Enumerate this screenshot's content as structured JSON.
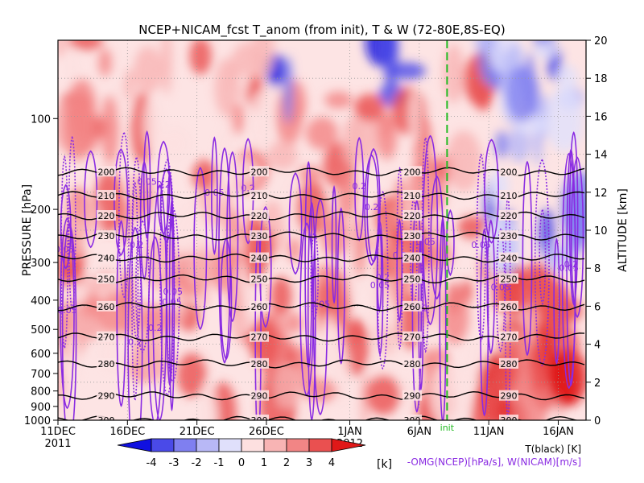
{
  "chart_data": {
    "type": "heatmap",
    "title": "NCEP+NICAM_fcst T_anom (from init), T & W  (72-80E,8S-EQ)",
    "ylabel_left": "PRESSURE [hPa]",
    "ylabel_right": "ALTITUDE [km]",
    "x_ticks": [
      "11DEC",
      "16DEC",
      "21DEC",
      "26DEC",
      "1JAN",
      "6JAN",
      "11JAN",
      "16JAN"
    ],
    "x_year_labels": [
      "2011",
      "2012"
    ],
    "xlim": [
      "2011-12-11",
      "2012-01-18"
    ],
    "pressure_ticks": [
      100,
      200,
      300,
      400,
      500,
      600,
      700,
      800,
      900,
      1000
    ],
    "pressure_range": [
      1000,
      55
    ],
    "pressure_scale": "log",
    "altitude_ticks": [
      0,
      2,
      4,
      6,
      8,
      10,
      12,
      14,
      16,
      18,
      20
    ],
    "altitude_range": [
      0,
      20
    ],
    "init_date": "2012-01-08",
    "init_label": "init",
    "colorbar": {
      "ticks": [
        "-4",
        "-3",
        "-2",
        "-1",
        "0",
        "1",
        "2",
        "3",
        "4"
      ],
      "unit": "[k]",
      "colors": [
        "#1010e0",
        "#4a4ae8",
        "#7f7ff0",
        "#b8b8f6",
        "#e0e0fb",
        "#fde0e0",
        "#f8b4b4",
        "#f28585",
        "#ea5050",
        "#e01818"
      ]
    },
    "legend_lines": [
      "T(black) [K]",
      "-OMG(NCEP)[hPa/s], W(NICAM)[m/s]"
    ],
    "temperature_contours": [
      {
        "label": "200",
        "pressure": 150
      },
      {
        "label": "210",
        "pressure": 180
      },
      {
        "label": "220",
        "pressure": 210
      },
      {
        "label": "230",
        "pressure": 245
      },
      {
        "label": "240",
        "pressure": 290
      },
      {
        "label": "250",
        "pressure": 340
      },
      {
        "label": "260",
        "pressure": 420
      },
      {
        "label": "270",
        "pressure": 530
      },
      {
        "label": "280",
        "pressure": 650
      },
      {
        "label": "290",
        "pressure": 830
      },
      {
        "label": "300",
        "pressure": 1000
      }
    ],
    "w_contour_labels": [
      "0.05",
      "0.1",
      "0.15",
      "0.2",
      "-0.05",
      "-0.1"
    ],
    "colors": {
      "temperature_contour": "#000000",
      "w_contour": "#8a2be2",
      "init_line": "#22bb22"
    }
  }
}
